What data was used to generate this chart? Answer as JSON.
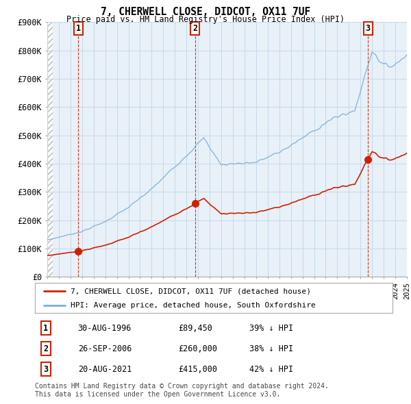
{
  "title": "7, CHERWELL CLOSE, DIDCOT, OX11 7UF",
  "subtitle": "Price paid vs. HM Land Registry's House Price Index (HPI)",
  "ylim": [
    0,
    900000
  ],
  "yticks": [
    0,
    100000,
    200000,
    300000,
    400000,
    500000,
    600000,
    700000,
    800000,
    900000
  ],
  "ytick_labels": [
    "£0",
    "£100K",
    "£200K",
    "£300K",
    "£400K",
    "£500K",
    "£600K",
    "£700K",
    "£800K",
    "£900K"
  ],
  "x_start_year": 1994,
  "x_end_year": 2025,
  "sale_years_f": [
    1996.664,
    2006.747,
    2021.636
  ],
  "sale_prices": [
    89450,
    260000,
    415000
  ],
  "sale_labels": [
    "1",
    "2",
    "3"
  ],
  "hpi_color": "#7ab0d4",
  "hpi_fill_color": "#ddeeff",
  "price_color": "#cc2200",
  "marker_color": "#cc2200",
  "legend_line1": "7, CHERWELL CLOSE, DIDCOT, OX11 7UF (detached house)",
  "legend_line2": "HPI: Average price, detached house, South Oxfordshire",
  "table_entries": [
    [
      "1",
      "30-AUG-1996",
      "£89,450",
      "39% ↓ HPI"
    ],
    [
      "2",
      "26-SEP-2006",
      "£260,000",
      "38% ↓ HPI"
    ],
    [
      "3",
      "20-AUG-2021",
      "£415,000",
      "42% ↓ HPI"
    ]
  ],
  "footer": "Contains HM Land Registry data © Crown copyright and database right 2024.\nThis data is licensed under the Open Government Licence v3.0.",
  "grid_color": "#c8d8e8",
  "hatch_color": "#d0d0d0",
  "chart_bg_color": "#e8f0f8"
}
